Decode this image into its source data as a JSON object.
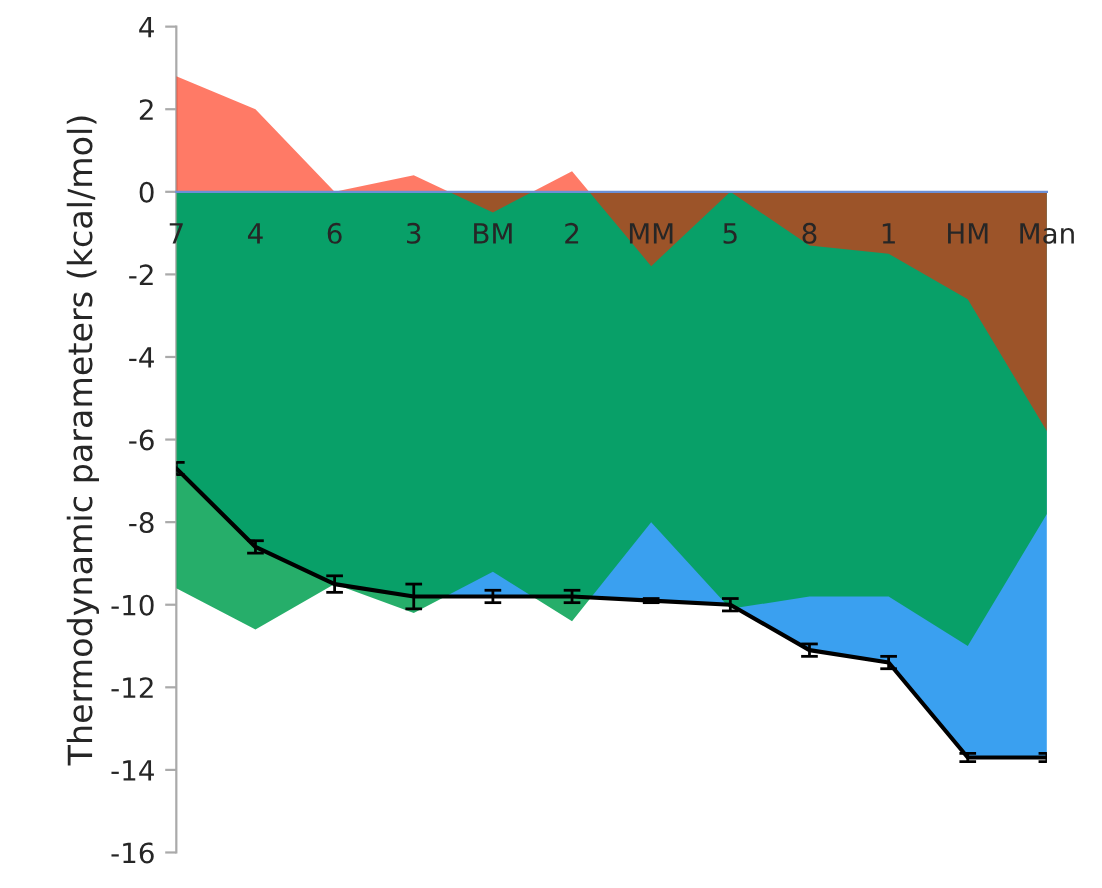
{
  "chart_data": {
    "type": "area",
    "ylabel": "Thermodynamic parameters (kcal/mol)",
    "categories": [
      "7",
      "4",
      "6",
      "3",
      "BM",
      "2",
      "MM",
      "5",
      "8",
      "1",
      "HM",
      "Man"
    ],
    "series": [
      {
        "color": "#00a050",
        "values": [
          -9.6,
          -10.6,
          -9.5,
          -10.2,
          -9.2,
          -10.4,
          -8.0,
          -10.1,
          -9.8,
          -9.8,
          -11.0,
          -7.8
        ]
      },
      {
        "color": "#3aa0f0",
        "values": [
          -6.7,
          -8.6,
          -9.5,
          -9.8,
          -9.8,
          -9.8,
          -9.9,
          -10.0,
          -11.1,
          -11.4,
          -13.7,
          -13.7
        ],
        "errors": [
          0.15,
          0.15,
          0.2,
          0.3,
          0.15,
          0.15,
          0.05,
          0.15,
          0.15,
          0.15,
          0.1,
          0.1
        ]
      },
      {
        "color": "#ff2200",
        "values": [
          2.8,
          2.0,
          0,
          0.4,
          -0.5,
          0.5,
          -1.8,
          0,
          -1.3,
          -1.5,
          -2.6,
          -5.8
        ]
      }
    ],
    "ylim": [
      -16,
      4
    ],
    "yticks": [
      -16,
      -14,
      -12,
      -10,
      -8,
      -6,
      -4,
      -2,
      0,
      2,
      4
    ],
    "grid": false,
    "legend": false
  }
}
